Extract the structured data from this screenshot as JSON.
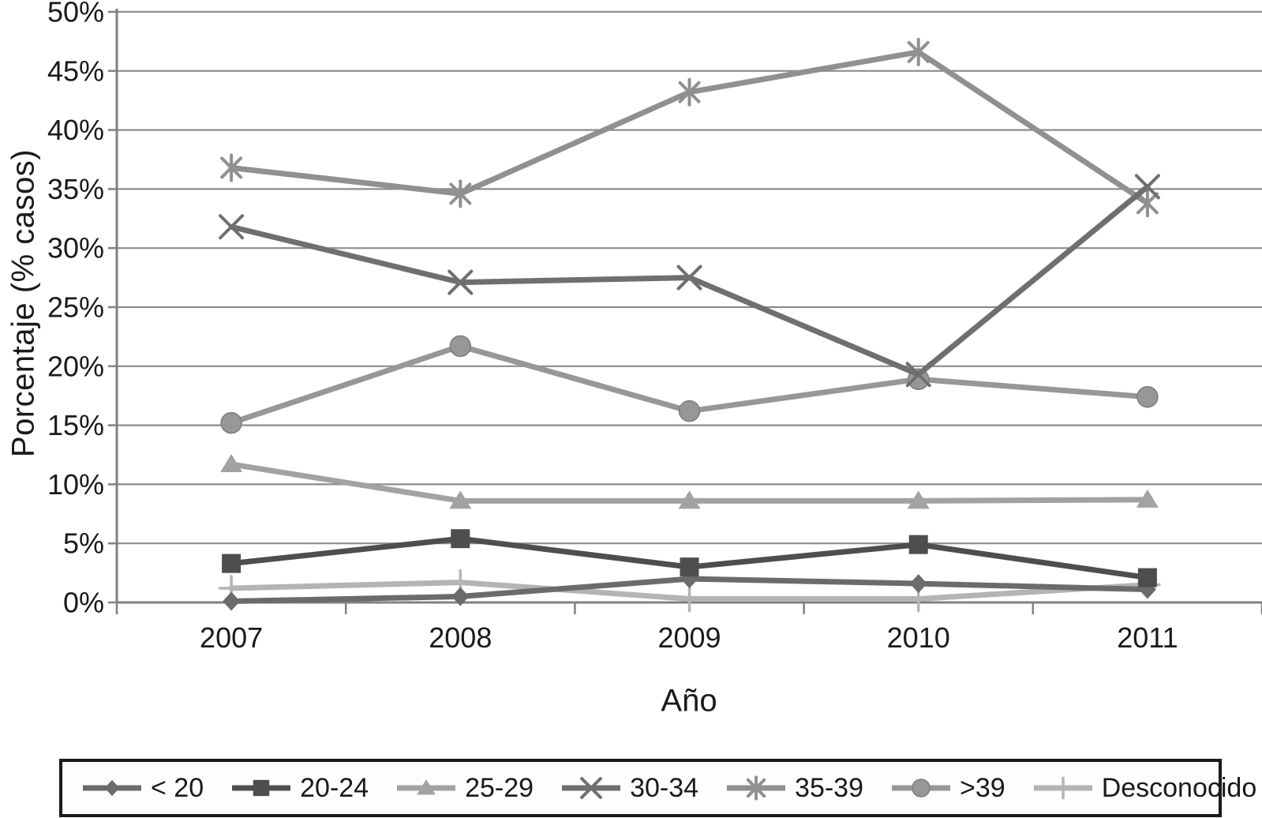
{
  "chart_data": {
    "type": "line",
    "title": "",
    "xlabel": "Año",
    "ylabel": "Porcentaje (% casos)",
    "categories": [
      "2007",
      "2008",
      "2009",
      "2010",
      "2011"
    ],
    "y_tick_labels": [
      "0%",
      "5%",
      "10%",
      "15%",
      "20%",
      "25%",
      "30%",
      "35%",
      "40%",
      "45%",
      "50%"
    ],
    "ylim": [
      0,
      50
    ],
    "grid": "horizontal",
    "legend_position": "bottom",
    "series": [
      {
        "name": "< 20",
        "marker": "diamond",
        "color": "#6b6b6b",
        "values": [
          0.1,
          0.5,
          2.0,
          1.6,
          1.1
        ]
      },
      {
        "name": "20-24",
        "marker": "square",
        "color": "#4e4e4e",
        "values": [
          3.3,
          5.4,
          3.0,
          4.9,
          2.1
        ]
      },
      {
        "name": "25-29",
        "marker": "triangle",
        "color": "#a2a2a2",
        "values": [
          11.7,
          8.6,
          8.6,
          8.6,
          8.7
        ]
      },
      {
        "name": "30-34",
        "marker": "x",
        "color": "#6f6f6f",
        "values": [
          31.8,
          27.1,
          27.5,
          19.3,
          35.2
        ]
      },
      {
        "name": "35-39",
        "marker": "asterisk",
        "color": "#909090",
        "values": [
          36.8,
          34.6,
          43.2,
          46.6,
          33.8
        ]
      },
      {
        "name": ">39",
        "marker": "circle",
        "color": "#979797",
        "values": [
          15.2,
          21.7,
          16.2,
          18.9,
          17.4
        ]
      },
      {
        "name": "Desconocido",
        "marker": "plus",
        "color": "#b4b4b4",
        "values": [
          1.2,
          1.7,
          0.3,
          0.3,
          1.5
        ]
      }
    ],
    "colors": {
      "gridline": "#8c8c8c",
      "axis": "#808080",
      "text": "#1a1a1a"
    }
  }
}
